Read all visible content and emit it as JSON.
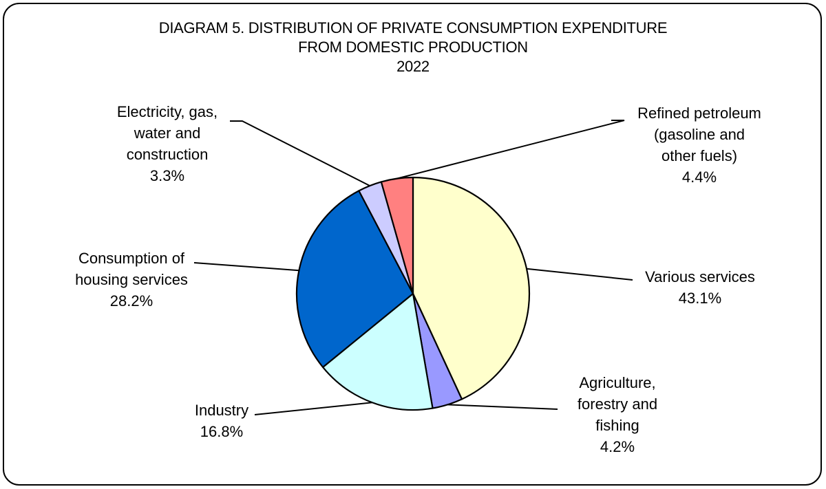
{
  "chart_data": {
    "type": "pie",
    "title_lines": [
      "DIAGRAM 5. DISTRIBUTION OF PRIVATE CONSUMPTION EXPENDITURE",
      "FROM DOMESTIC PRODUCTION",
      "2022"
    ],
    "slices": [
      {
        "name": "Various services",
        "label_lines": [
          "Various services"
        ],
        "value": 43.1,
        "value_label": "43.1%",
        "color": "#FFFFCC"
      },
      {
        "name": "Agriculture, forestry and fishing",
        "label_lines": [
          "Agriculture,",
          "forestry and",
          "fishing"
        ],
        "value": 4.2,
        "value_label": "4.2%",
        "color": "#9999FF"
      },
      {
        "name": "Industry",
        "label_lines": [
          "Industry"
        ],
        "value": 16.8,
        "value_label": "16.8%",
        "color": "#CCFFFF"
      },
      {
        "name": "Consumption of housing services",
        "label_lines": [
          "Consumption of",
          "housing services"
        ],
        "value": 28.2,
        "value_label": "28.2%",
        "color": "#0066CC"
      },
      {
        "name": "Electricity, gas, water and construction",
        "label_lines": [
          "Electricity, gas,",
          "water and",
          "construction"
        ],
        "value": 3.3,
        "value_label": "3.3%",
        "color": "#CCCCFF"
      },
      {
        "name": "Refined petroleum (gasoline and other fuels)",
        "label_lines": [
          "Refined petroleum",
          "(gasoline and",
          "other fuels)"
        ],
        "value": 4.4,
        "value_label": "4.4%",
        "color": "#FF8080"
      }
    ],
    "start": "12 o'clock",
    "direction": "clockwise",
    "legend": "none",
    "slice_border": "#000000"
  }
}
